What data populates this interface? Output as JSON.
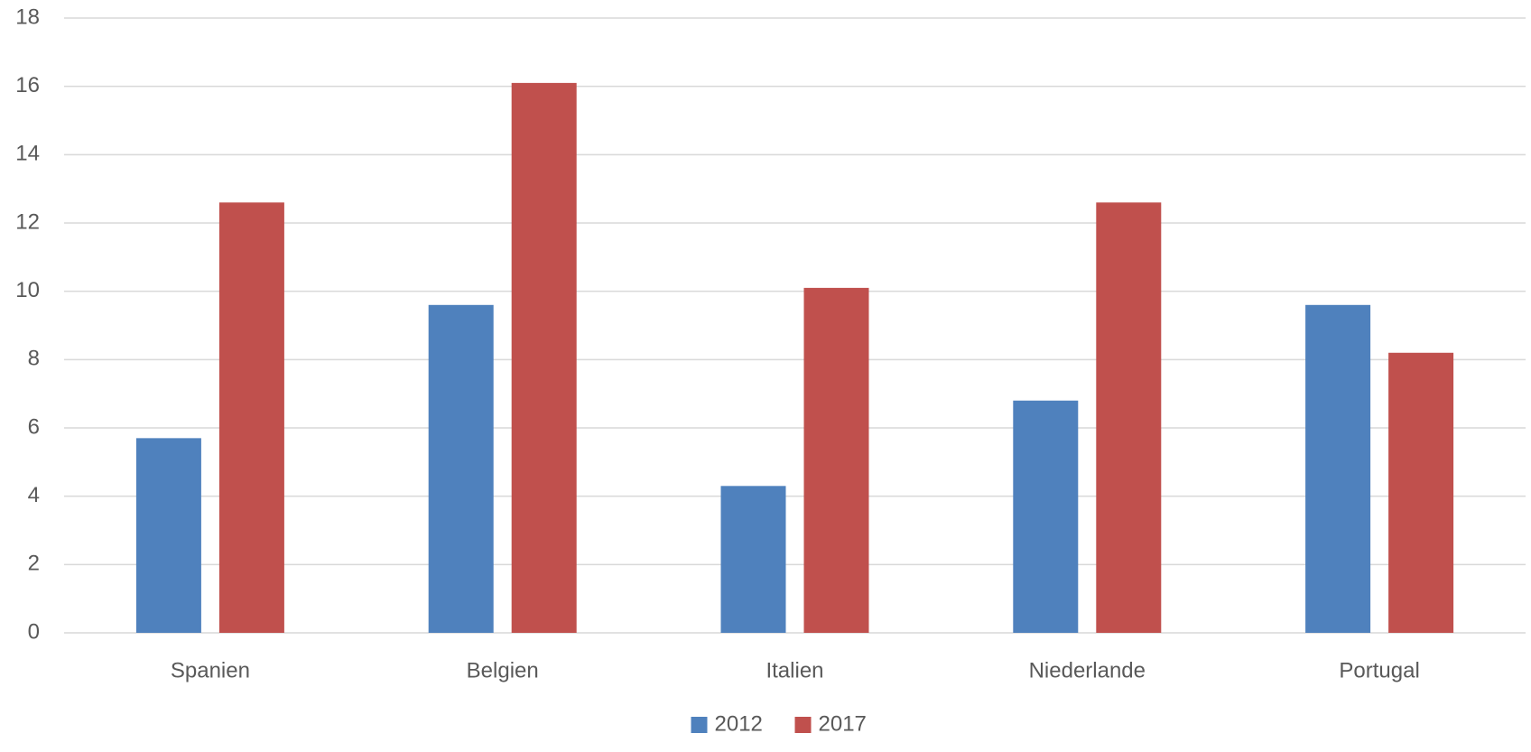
{
  "chart_data": {
    "type": "bar",
    "categories": [
      "Spanien",
      "Belgien",
      "Italien",
      "Niederlande",
      "Portugal"
    ],
    "series": [
      {
        "name": "2012",
        "color": "#4f81bd",
        "values": [
          5.7,
          9.6,
          4.3,
          6.8,
          9.6
        ]
      },
      {
        "name": "2017",
        "color": "#c0504d",
        "values": [
          12.6,
          16.1,
          10.1,
          12.6,
          8.2
        ]
      }
    ],
    "ylim": [
      0,
      18
    ],
    "yticks": [
      0,
      2,
      4,
      6,
      8,
      10,
      12,
      14,
      16,
      18
    ],
    "grid": true,
    "legend": "bottom"
  }
}
